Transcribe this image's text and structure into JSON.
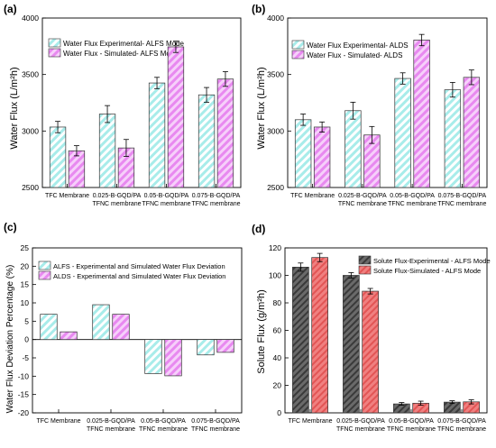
{
  "panels": [
    {
      "letter": "(a)",
      "ylabel": "Water Flux (L/m²h)",
      "legend": [
        "Water Flux Experimental- ALFS Mode",
        "Water Flux - Simulated- ALFS Mode"
      ]
    },
    {
      "letter": "(b)",
      "ylabel": "Water Flux (L/m²h)",
      "legend": [
        "Water Flux Experimental- ALDS",
        "Water Flux - Simulated- ALDS"
      ]
    },
    {
      "letter": "(c)",
      "ylabel": "Water Flux Deviation Percentage (%)",
      "legend": [
        "ALFS - Experimental and Simulated Water Flux Deviation",
        "ALDS - Experimental and Simulated Water Flux Deviation"
      ]
    },
    {
      "letter": "(d)",
      "ylabel": "Solute Flux (g/m²h)",
      "legend": [
        "Solute Flux-Experimental - ALFS Mode",
        "Solute Flux-Simulated - ALFS Mode"
      ]
    }
  ],
  "colors": {
    "cyan": "#a8ecea",
    "magenta": "#e889f0",
    "gray": "#555555",
    "red": "#ee6a6a"
  },
  "chart_data": [
    {
      "type": "bar",
      "categories": [
        [
          "TFC Membrane"
        ],
        [
          "0.025-B-GQD/PA",
          "TFNC membrane"
        ],
        [
          "0.05-B-GQD/PA",
          "TFNC membrane"
        ],
        [
          "0.075-B-GQD/PA",
          "TFNC membrane"
        ]
      ],
      "series": [
        {
          "name": "Water Flux Experimental- ALFS Mode",
          "values": [
            3035,
            3150,
            3425,
            3320
          ],
          "errors": [
            50,
            75,
            50,
            65
          ]
        },
        {
          "name": "Water Flux - Simulated- ALFS Mode",
          "values": [
            2825,
            2850,
            3745,
            3460
          ],
          "errors": [
            45,
            75,
            50,
            65
          ]
        }
      ],
      "ylim": [
        2500,
        4000
      ],
      "yticks": [
        2500,
        3000,
        3500,
        4000
      ],
      "grid": false
    },
    {
      "type": "bar",
      "categories": [
        [
          "TFC Membrane"
        ],
        [
          "0.025-B-GQD/PA",
          "TFNC membrane"
        ],
        [
          "0.05-B-GQD/PA",
          "TFNC membrane"
        ],
        [
          "0.075-B-GQD/PA",
          "TFNC membrane"
        ]
      ],
      "series": [
        {
          "name": "Water Flux Experimental- ALDS",
          "values": [
            3100,
            3180,
            3465,
            3365
          ],
          "errors": [
            50,
            75,
            50,
            65
          ]
        },
        {
          "name": "Water Flux - Simulated- ALDS",
          "values": [
            3035,
            2965,
            3805,
            3475
          ],
          "errors": [
            45,
            75,
            50,
            65
          ]
        }
      ],
      "ylim": [
        2500,
        4000
      ],
      "yticks": [
        2500,
        3000,
        3500,
        4000
      ],
      "grid": false
    },
    {
      "type": "bar",
      "categories": [
        [
          "TFC Membrane"
        ],
        [
          "0.025-B-GQD/PA",
          "TFNC membrane"
        ],
        [
          "0.05-B-GQD/PA",
          "TFNC membrane"
        ],
        [
          "0.075-B-GQD/PA",
          "TFNC membrane"
        ]
      ],
      "series": [
        {
          "name": "ALFS - Experimental and Simulated Water Flux Deviation",
          "values": [
            6.9,
            9.5,
            -9.3,
            -4.2
          ]
        },
        {
          "name": "ALDS - Experimental and Simulated Water Flux Deviation",
          "values": [
            2.1,
            6.9,
            -9.9,
            -3.5
          ]
        }
      ],
      "ylim": [
        -20,
        25
      ],
      "yticks": [
        -20,
        -15,
        -10,
        -5,
        0,
        5,
        10,
        15,
        20,
        25
      ],
      "grid": false
    },
    {
      "type": "bar",
      "categories": [
        [
          "TFC Membrane"
        ],
        [
          "0.025-B-GQD/PA",
          "TFNC membrane"
        ],
        [
          "0.05-B-GQD/PA",
          "TFNC membrane"
        ],
        [
          "0.075-B-GQD/PA",
          "TFNC membrane"
        ]
      ],
      "series": [
        {
          "name": "Solute Flux-Experimental - ALFS Mode",
          "values": [
            106,
            100,
            6.5,
            7.8
          ],
          "errors": [
            3,
            2,
            1,
            1
          ]
        },
        {
          "name": "Solute Flux-Simulated - ALFS Mode",
          "values": [
            113,
            88.5,
            7.0,
            8.0
          ],
          "errors": [
            3,
            2,
            1.5,
            1.5
          ]
        }
      ],
      "ylim": [
        0,
        120
      ],
      "yticks": [
        0,
        20,
        40,
        60,
        80,
        100,
        120
      ],
      "grid": false
    }
  ]
}
